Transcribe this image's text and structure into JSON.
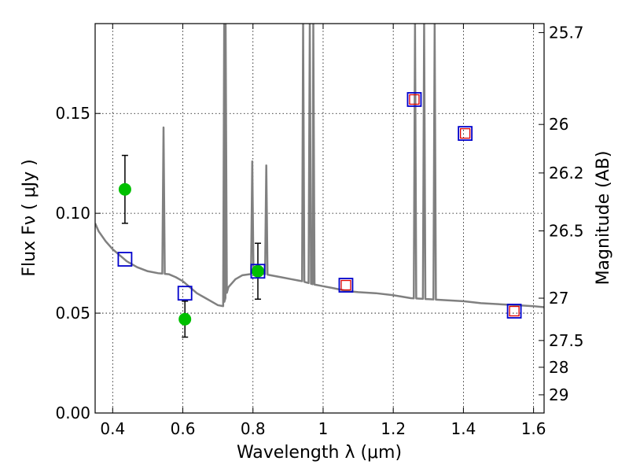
{
  "chart_data": {
    "type": "scatter",
    "title": "",
    "xlabel": "Wavelength  λ (μm)",
    "ylabel": "Flux  Fν  ( μJy )",
    "y2label": "Magnitude (AB)",
    "xlim": [
      0.35,
      1.63
    ],
    "ylim": [
      0.0,
      0.195
    ],
    "grid": true,
    "x_ticks": [
      0.4,
      0.6,
      0.8,
      1.0,
      1.2,
      1.4,
      1.6
    ],
    "x_tick_labels": [
      "0.4",
      "0.6",
      "0.8",
      "1",
      "1.2",
      "1.4",
      "1.6"
    ],
    "y_ticks": [
      0.0,
      0.05,
      0.1,
      0.15
    ],
    "y_tick_labels": [
      "0.00",
      "0.05",
      "0.10",
      "0.15"
    ],
    "y2_ticks": [
      {
        "label": "25.7",
        "flux": 0.1905
      },
      {
        "label": "26",
        "flux": 0.1445
      },
      {
        "label": "26.2",
        "flux": 0.1202
      },
      {
        "label": "26.5",
        "flux": 0.0912
      },
      {
        "label": "27",
        "flux": 0.0575
      },
      {
        "label": "27.5",
        "flux": 0.0363
      },
      {
        "label": "28",
        "flux": 0.0229
      },
      {
        "label": "29",
        "flux": 0.0091
      }
    ],
    "sed_model": {
      "color": "#808080",
      "continuum": [
        [
          0.35,
          0.095
        ],
        [
          0.36,
          0.091
        ],
        [
          0.38,
          0.086
        ],
        [
          0.4,
          0.082
        ],
        [
          0.42,
          0.079
        ],
        [
          0.44,
          0.076
        ],
        [
          0.47,
          0.073
        ],
        [
          0.5,
          0.071
        ],
        [
          0.53,
          0.07
        ],
        [
          0.56,
          0.0695
        ],
        [
          0.58,
          0.068
        ],
        [
          0.6,
          0.066
        ],
        [
          0.62,
          0.063
        ],
        [
          0.64,
          0.06
        ],
        [
          0.66,
          0.058
        ],
        [
          0.68,
          0.056
        ],
        [
          0.7,
          0.054
        ],
        [
          0.715,
          0.0535
        ],
        [
          0.73,
          0.063
        ],
        [
          0.75,
          0.067
        ],
        [
          0.77,
          0.069
        ],
        [
          0.79,
          0.0695
        ],
        [
          0.82,
          0.07
        ],
        [
          0.85,
          0.069
        ],
        [
          0.88,
          0.068
        ],
        [
          0.91,
          0.067
        ],
        [
          0.94,
          0.066
        ],
        [
          0.97,
          0.0645
        ],
        [
          1.0,
          0.0635
        ],
        [
          1.03,
          0.0625
        ],
        [
          1.07,
          0.061
        ],
        [
          1.1,
          0.0605
        ],
        [
          1.15,
          0.06
        ],
        [
          1.2,
          0.059
        ],
        [
          1.25,
          0.0575
        ],
        [
          1.3,
          0.057
        ],
        [
          1.35,
          0.0565
        ],
        [
          1.4,
          0.056
        ],
        [
          1.45,
          0.055
        ],
        [
          1.5,
          0.0545
        ],
        [
          1.55,
          0.054
        ],
        [
          1.6,
          0.0535
        ],
        [
          1.63,
          0.053
        ]
      ],
      "emission_lines": [
        {
          "x": 0.545,
          "peak": 0.143
        },
        {
          "x": 0.718,
          "peak": 0.195
        },
        {
          "x": 0.722,
          "peak": 0.195
        },
        {
          "x": 0.798,
          "peak": 0.126
        },
        {
          "x": 0.838,
          "peak": 0.124
        },
        {
          "x": 0.943,
          "peak": 0.195
        },
        {
          "x": 0.962,
          "peak": 0.195
        },
        {
          "x": 0.972,
          "peak": 0.195
        },
        {
          "x": 1.262,
          "peak": 0.195
        },
        {
          "x": 1.288,
          "peak": 0.195
        },
        {
          "x": 1.318,
          "peak": 0.195
        }
      ]
    },
    "series": [
      {
        "marker": "circle",
        "color": "#00c000",
        "points": [
          {
            "x": 0.435,
            "y": 0.112,
            "yerr": 0.017
          },
          {
            "x": 0.606,
            "y": 0.047,
            "yerr": 0.009
          },
          {
            "x": 0.814,
            "y": 0.071,
            "yerr": 0.014
          }
        ]
      },
      {
        "marker": "open-square",
        "color": "#0000cc",
        "points": [
          {
            "x": 0.435,
            "y": 0.077
          },
          {
            "x": 0.606,
            "y": 0.06
          },
          {
            "x": 0.814,
            "y": 0.071
          },
          {
            "x": 1.065,
            "y": 0.064
          },
          {
            "x": 1.26,
            "y": 0.157
          },
          {
            "x": 1.405,
            "y": 0.14
          },
          {
            "x": 1.545,
            "y": 0.051
          }
        ]
      },
      {
        "marker": "small-open-square",
        "color": "#dd0000",
        "points": [
          {
            "x": 1.065,
            "y": 0.064
          },
          {
            "x": 1.26,
            "y": 0.157
          },
          {
            "x": 1.405,
            "y": 0.14
          },
          {
            "x": 1.545,
            "y": 0.051
          }
        ]
      }
    ]
  }
}
